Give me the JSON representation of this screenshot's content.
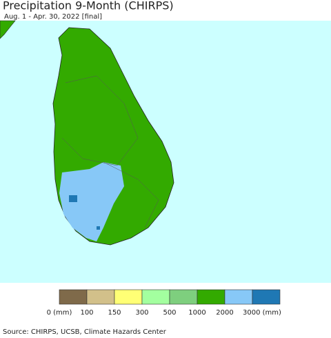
{
  "header": {
    "title": "Precipitation 9-Month (CHIRPS)",
    "subtitle": "Aug. 1 - Apr. 30, 2022 [final]"
  },
  "legend": {
    "colors": [
      "#7f6a4a",
      "#d2c08a",
      "#ffff75",
      "#a3ff9f",
      "#7ecf7e",
      "#33aa00",
      "#87c8f7",
      "#1f78b4"
    ],
    "labels": [
      "0 (mm)",
      "100",
      "150",
      "300",
      "500",
      "1000",
      "2000",
      "3000 (mm)"
    ]
  },
  "footer": {
    "source": "Source: CHIRPS, UCSB, Climate Hazards Center"
  }
}
